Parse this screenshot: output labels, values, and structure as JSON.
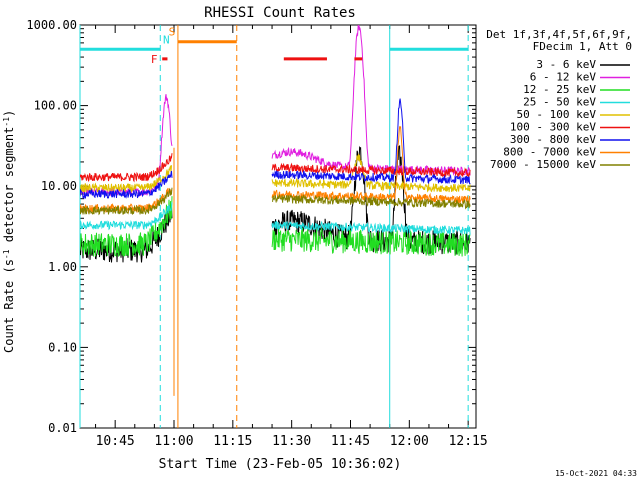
{
  "chart_data": {
    "type": "line",
    "title": "RHESSI Count Rates",
    "xlabel": "Start Time (23-Feb-05 10:36:02)",
    "ylabel_main": "Count Rate (s",
    "ylabel_sup": "-1",
    "ylabel_tail": " detector segment",
    "ylabel_sup2": "-1",
    "ylabel_end": ")",
    "y_scale": "log",
    "ylim": [
      0.01,
      1000
    ],
    "y_ticks": [
      {
        "value": 0.01,
        "label": "0.01"
      },
      {
        "value": 0.1,
        "label": "0.10"
      },
      {
        "value": 1,
        "label": "1.00"
      },
      {
        "value": 10,
        "label": "10.00"
      },
      {
        "value": 100,
        "label": "100.00"
      },
      {
        "value": 1000,
        "label": "1000.00"
      }
    ],
    "xlim": [
      "10:36:02",
      "12:17:00"
    ],
    "x_ticks": [
      "10:45",
      "11:00",
      "11:15",
      "11:30",
      "11:45",
      "12:00",
      "12:15"
    ],
    "legend_header": [
      "Det 1f,3f,4f,5f,6f,9f,",
      "FDecim 1, Att 0"
    ],
    "legend_position": "right",
    "series": [
      {
        "name": "3 - 6 keV",
        "color": "#000000",
        "base": 1.6,
        "gap_base": 2.3
      },
      {
        "name": "6 - 12 keV",
        "color": "#e020e0",
        "base": 8.5,
        "gap_base": 18
      },
      {
        "name": "12 - 25 keV",
        "color": "#22dd22",
        "base": 1.9,
        "gap_base": 2.2
      },
      {
        "name": "25 - 50 keV",
        "color": "#22dddd",
        "base": 3.3,
        "gap_base": 3.3
      },
      {
        "name": "50 - 100 keV",
        "color": "#e0c000",
        "base": 9.5,
        "gap_base": 11
      },
      {
        "name": "100 - 300 keV",
        "color": "#ee1111",
        "base": 13,
        "gap_base": 17
      },
      {
        "name": "300 - 800 keV",
        "color": "#1111ee",
        "base": 8,
        "gap_base": 14
      },
      {
        "name": "800 - 7000 keV",
        "color": "#ff8000",
        "base": 5.3,
        "gap_base": 8
      },
      {
        "name": "7000 - 15000 keV",
        "color": "#808000",
        "base": 5,
        "gap_base": 7
      }
    ],
    "flare_flags": [
      {
        "label": "F",
        "color": "#ee1111",
        "start": "10:57:00",
        "end": "10:58:20",
        "value": 380
      },
      {
        "label": "N",
        "color": "#22dddd",
        "start": "10:36:02",
        "end": "10:56:30",
        "value": 500
      },
      {
        "label": "S",
        "color": "#ff8000",
        "start": "11:01:00",
        "end": "11:16:00",
        "value": 620
      }
    ],
    "flag_bars": [
      {
        "color": "#ee1111",
        "start": "11:28:00",
        "end": "11:39:00",
        "value": 380
      },
      {
        "color": "#ee1111",
        "start": "11:46:00",
        "end": "11:48:00",
        "value": 380
      },
      {
        "color": "#22dddd",
        "start": "11:55:00",
        "end": "12:15:00",
        "value": 500
      }
    ],
    "vertical_lines": [
      {
        "time": "10:36:02",
        "color": "#22dddd",
        "style": "solid"
      },
      {
        "time": "10:56:30",
        "color": "#22dddd",
        "style": "dashed"
      },
      {
        "time": "11:01:00",
        "color": "#ff8000",
        "style": "solid"
      },
      {
        "time": "11:16:00",
        "color": "#ff8000",
        "style": "dashed"
      },
      {
        "time": "11:55:00",
        "color": "#22dddd",
        "style": "solid"
      },
      {
        "time": "12:15:00",
        "color": "#22dddd",
        "style": "dashed"
      }
    ],
    "gap": [
      "11:01:00",
      "11:25:00"
    ],
    "timestamp": "15-Oct-2021 04:33"
  }
}
